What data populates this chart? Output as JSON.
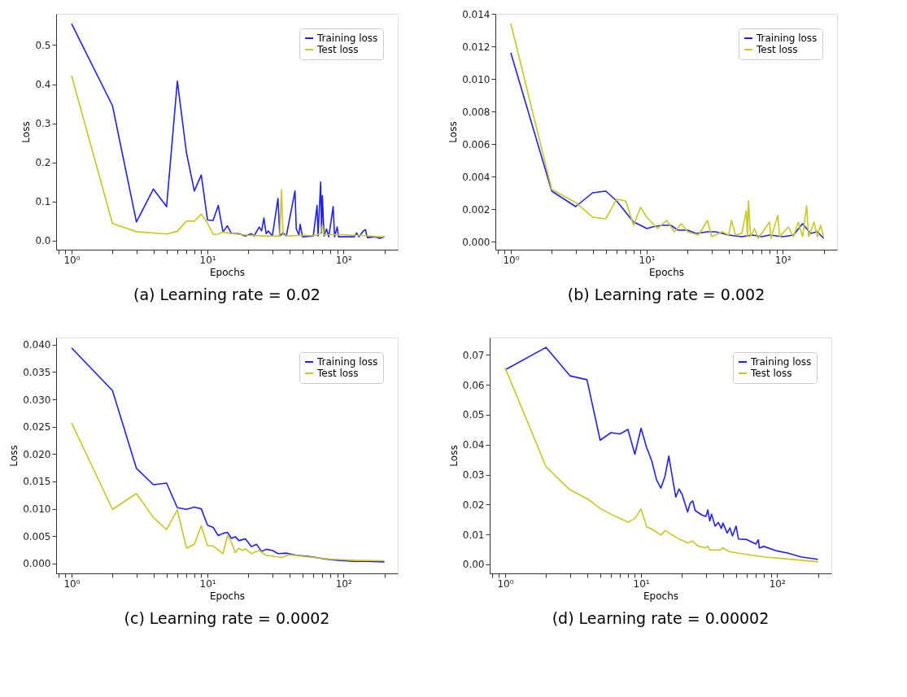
{
  "chart_data": [
    {
      "type": "line",
      "title": "(a) Learning rate = 0.02",
      "xlabel": "Epochs",
      "ylabel": "Loss",
      "log": "x",
      "grid": false,
      "legend": "top right",
      "line_style": "solid",
      "marker": "none",
      "xlim": [
        0.77,
        251
      ],
      "xticks": [
        {
          "value": 0.8,
          "label": null
        },
        {
          "value": 0.9,
          "label": null
        },
        {
          "value": 1,
          "label": "10⁰"
        },
        {
          "value": 2,
          "label": null
        },
        {
          "value": 3,
          "label": null
        },
        {
          "value": 4,
          "label": null
        },
        {
          "value": 5,
          "label": null
        },
        {
          "value": 6,
          "label": null
        },
        {
          "value": 7,
          "label": null
        },
        {
          "value": 8,
          "label": null
        },
        {
          "value": 9,
          "label": null
        },
        {
          "value": 10,
          "label": "10¹"
        },
        {
          "value": 20,
          "label": null
        },
        {
          "value": 30,
          "label": null
        },
        {
          "value": 40,
          "label": null
        },
        {
          "value": 50,
          "label": null
        },
        {
          "value": 60,
          "label": null
        },
        {
          "value": 70,
          "label": null
        },
        {
          "value": 80,
          "label": null
        },
        {
          "value": 90,
          "label": null
        },
        {
          "value": 100,
          "label": "10²"
        },
        {
          "value": 200,
          "label": null
        }
      ],
      "ylim": [
        -0.023,
        0.58
      ],
      "yticks": [
        {
          "value": 0,
          "label": "0.0"
        },
        0.1,
        0.2,
        0.3,
        0.4,
        0.5
      ],
      "series": [
        {
          "name": "Training loss",
          "color": "#1f1fff",
          "x": [
            1,
            2,
            3,
            4,
            5,
            6,
            7,
            8,
            9,
            10,
            11,
            12,
            13,
            14,
            15,
            17,
            19,
            21,
            22,
            24,
            25,
            26,
            27,
            28,
            30,
            33,
            34,
            36,
            38,
            44,
            45,
            47,
            48,
            50,
            60,
            64,
            65,
            68,
            69,
            70,
            72,
            75,
            78,
            84,
            86,
            90,
            92,
            120,
            125,
            130,
            140,
            145,
            150,
            170,
            185,
            200
          ],
          "values": [
            0.555,
            0.345,
            0.048,
            0.132,
            0.087,
            0.408,
            0.225,
            0.127,
            0.168,
            0.053,
            0.052,
            0.09,
            0.022,
            0.038,
            0.018,
            0.018,
            0.012,
            0.018,
            0.012,
            0.035,
            0.025,
            0.058,
            0.018,
            0.025,
            0.012,
            0.108,
            0.012,
            0.02,
            0.012,
            0.127,
            0.03,
            0.015,
            0.042,
            0.01,
            0.012,
            0.09,
            0.012,
            0.15,
            0.02,
            0.115,
            0.012,
            0.03,
            0.01,
            0.087,
            0.01,
            0.035,
            0.01,
            0.01,
            0.02,
            0.01,
            0.025,
            0.028,
            0.008,
            0.01,
            0.006,
            0.01
          ]
        },
        {
          "name": "Test loss",
          "color": "#c8c820",
          "x": [
            1,
            2,
            3,
            5,
            6,
            7,
            8,
            9,
            10,
            11,
            12,
            13,
            15,
            20,
            25,
            30,
            34,
            35,
            36,
            40,
            50,
            60,
            68,
            70,
            72,
            90,
            120,
            150,
            180,
            200
          ],
          "values": [
            0.422,
            0.044,
            0.023,
            0.017,
            0.024,
            0.05,
            0.05,
            0.068,
            0.045,
            0.016,
            0.017,
            0.022,
            0.018,
            0.014,
            0.012,
            0.012,
            0.012,
            0.13,
            0.015,
            0.012,
            0.014,
            0.013,
            0.018,
            0.04,
            0.015,
            0.016,
            0.014,
            0.013,
            0.01,
            0.01
          ]
        }
      ]
    },
    {
      "type": "line",
      "title": "(b) Learning rate = 0.002",
      "xlabel": "Epochs",
      "ylabel": "Loss",
      "log": "x",
      "grid": false,
      "legend": "top right",
      "line_style": "solid",
      "marker": "none",
      "xlim": [
        0.77,
        251
      ],
      "xticks": [
        {
          "value": 0.8,
          "label": null
        },
        {
          "value": 0.9,
          "label": null
        },
        {
          "value": 1,
          "label": "10⁰"
        },
        {
          "value": 2,
          "label": null
        },
        {
          "value": 3,
          "label": null
        },
        {
          "value": 4,
          "label": null
        },
        {
          "value": 5,
          "label": null
        },
        {
          "value": 6,
          "label": null
        },
        {
          "value": 7,
          "label": null
        },
        {
          "value": 8,
          "label": null
        },
        {
          "value": 9,
          "label": null
        },
        {
          "value": 10,
          "label": "10¹"
        },
        {
          "value": 20,
          "label": null
        },
        {
          "value": 30,
          "label": null
        },
        {
          "value": 40,
          "label": null
        },
        {
          "value": 50,
          "label": null
        },
        {
          "value": 60,
          "label": null
        },
        {
          "value": 70,
          "label": null
        },
        {
          "value": 80,
          "label": null
        },
        {
          "value": 90,
          "label": null
        },
        {
          "value": 100,
          "label": "10²"
        },
        {
          "value": 200,
          "label": null
        }
      ],
      "ylim": [
        -0.0005,
        0.014
      ],
      "yticks": [
        {
          "value": 0,
          "label": "0.000"
        },
        0.002,
        0.004,
        0.006,
        0.008,
        {
          "value": 0.01,
          "label": "0.010"
        },
        0.012,
        0.014
      ],
      "series": [
        {
          "name": "Training loss",
          "color": "#1f1fff",
          "x": [
            1,
            2,
            3,
            4,
            5,
            6,
            7,
            8,
            9,
            10,
            11,
            13,
            15,
            17,
            20,
            23,
            28,
            32,
            36,
            40,
            50,
            60,
            70,
            80,
            100,
            120,
            140,
            160,
            180,
            200
          ],
          "values": [
            0.0116,
            0.0031,
            0.00215,
            0.003,
            0.0031,
            0.0025,
            0.0018,
            0.0012,
            0.001,
            0.0008,
            0.0009,
            0.001,
            0.001,
            0.0007,
            0.0007,
            0.0005,
            0.0006,
            0.0006,
            0.0005,
            0.0004,
            0.0003,
            0.0004,
            0.0003,
            0.0004,
            0.0003,
            0.0004,
            0.0011,
            0.0005,
            0.0006,
            0.0002
          ]
        },
        {
          "name": "Test loss",
          "color": "#c8c820",
          "x": [
            1,
            2,
            3,
            4,
            5,
            6,
            7,
            8,
            9,
            10,
            12,
            14,
            16,
            18,
            20,
            24,
            28,
            30,
            36,
            40,
            42,
            45,
            50,
            54,
            55,
            56,
            58,
            62,
            66,
            80,
            82,
            92,
            95,
            110,
            120,
            130,
            140,
            150,
            155,
            170,
            180,
            190,
            200
          ],
          "values": [
            0.0134,
            0.0032,
            0.0024,
            0.0015,
            0.0014,
            0.0026,
            0.0025,
            0.001,
            0.0021,
            0.0015,
            0.0008,
            0.0013,
            0.0006,
            0.0011,
            0.0006,
            0.0004,
            0.0013,
            0.0003,
            0.0006,
            0.0004,
            0.0013,
            0.0004,
            0.0005,
            0.0019,
            0.0003,
            0.0025,
            0.0003,
            0.0008,
            0.0002,
            0.0012,
            0.0002,
            0.0016,
            0.0003,
            0.0009,
            0.0003,
            0.0012,
            0.0003,
            0.0022,
            0.0003,
            0.0012,
            0.0003,
            0.001,
            0.0003
          ]
        }
      ]
    },
    {
      "type": "line",
      "title": "(c) Learning rate = 0.0002",
      "xlabel": "Epochs",
      "ylabel": "Loss",
      "log": "x",
      "grid": false,
      "legend": "top right",
      "line_style": "solid",
      "marker": "none",
      "xlim": [
        0.77,
        251
      ],
      "xticks": [
        {
          "value": 0.8,
          "label": null
        },
        {
          "value": 0.9,
          "label": null
        },
        {
          "value": 1,
          "label": "10⁰"
        },
        {
          "value": 2,
          "label": null
        },
        {
          "value": 3,
          "label": null
        },
        {
          "value": 4,
          "label": null
        },
        {
          "value": 5,
          "label": null
        },
        {
          "value": 6,
          "label": null
        },
        {
          "value": 7,
          "label": null
        },
        {
          "value": 8,
          "label": null
        },
        {
          "value": 9,
          "label": null
        },
        {
          "value": 10,
          "label": "10¹"
        },
        {
          "value": 20,
          "label": null
        },
        {
          "value": 30,
          "label": null
        },
        {
          "value": 40,
          "label": null
        },
        {
          "value": 50,
          "label": null
        },
        {
          "value": 60,
          "label": null
        },
        {
          "value": 70,
          "label": null
        },
        {
          "value": 80,
          "label": null
        },
        {
          "value": 90,
          "label": null
        },
        {
          "value": 100,
          "label": "10²"
        },
        {
          "value": 200,
          "label": null
        }
      ],
      "ylim": [
        -0.0018,
        0.0413
      ],
      "yticks": [
        {
          "value": 0,
          "label": "0.000"
        },
        0.005,
        {
          "value": 0.01,
          "label": "0.010"
        },
        0.015,
        {
          "value": 0.02,
          "label": "0.020"
        },
        0.025,
        {
          "value": 0.03,
          "label": "0.030"
        },
        0.035,
        {
          "value": 0.04,
          "label": "0.040"
        }
      ],
      "series": [
        {
          "name": "Training loss",
          "color": "#1f1fff",
          "x": [
            1,
            2,
            3,
            4,
            5,
            6,
            7,
            8,
            9,
            10,
            11,
            12,
            13,
            14,
            15,
            16,
            17,
            19,
            21,
            23,
            25,
            27,
            30,
            33,
            38,
            45,
            55,
            70,
            90,
            120,
            150,
            200
          ],
          "values": [
            0.0394,
            0.0316,
            0.0174,
            0.0144,
            0.0147,
            0.0102,
            0.0099,
            0.0103,
            0.01,
            0.007,
            0.0066,
            0.0051,
            0.0055,
            0.0057,
            0.0046,
            0.0049,
            0.0042,
            0.0045,
            0.0031,
            0.0035,
            0.0022,
            0.0026,
            0.0024,
            0.0018,
            0.0019,
            0.0015,
            0.0013,
            0.0009,
            0.0006,
            0.0004,
            0.0004,
            0.0003
          ]
        },
        {
          "name": "Test loss",
          "color": "#c8c820",
          "x": [
            1,
            2,
            3,
            4,
            5,
            6,
            7,
            8,
            9,
            10,
            11,
            13,
            14,
            15,
            16,
            17,
            18,
            19,
            21,
            24,
            27,
            35,
            40,
            55,
            80,
            120,
            200
          ],
          "values": [
            0.0257,
            0.0099,
            0.0128,
            0.0084,
            0.0062,
            0.0098,
            0.0028,
            0.0035,
            0.0069,
            0.0033,
            0.0032,
            0.0018,
            0.0051,
            0.0039,
            0.002,
            0.0028,
            0.0024,
            0.0027,
            0.0018,
            0.0024,
            0.0015,
            0.0011,
            0.0016,
            0.0012,
            0.0008,
            0.0006,
            0.0005
          ]
        }
      ]
    },
    {
      "type": "line",
      "title": "(d) Learning rate = 0.00002",
      "xlabel": "Epochs",
      "ylabel": "Loss",
      "log": "x",
      "grid": false,
      "legend": "top right",
      "line_style": "solid",
      "marker": "none",
      "xlim": [
        0.77,
        251
      ],
      "xticks": [
        {
          "value": 0.8,
          "label": null
        },
        {
          "value": 0.9,
          "label": null
        },
        {
          "value": 1,
          "label": "10⁰"
        },
        {
          "value": 2,
          "label": null
        },
        {
          "value": 3,
          "label": null
        },
        {
          "value": 4,
          "label": null
        },
        {
          "value": 5,
          "label": null
        },
        {
          "value": 6,
          "label": null
        },
        {
          "value": 7,
          "label": null
        },
        {
          "value": 8,
          "label": null
        },
        {
          "value": 9,
          "label": null
        },
        {
          "value": 10,
          "label": "10¹"
        },
        {
          "value": 20,
          "label": null
        },
        {
          "value": 30,
          "label": null
        },
        {
          "value": 40,
          "label": null
        },
        {
          "value": 50,
          "label": null
        },
        {
          "value": 60,
          "label": null
        },
        {
          "value": 70,
          "label": null
        },
        {
          "value": 80,
          "label": null
        },
        {
          "value": 90,
          "label": null
        },
        {
          "value": 100,
          "label": "10²"
        },
        {
          "value": 200,
          "label": null
        }
      ],
      "ylim": [
        -0.003,
        0.0758
      ],
      "yticks": [
        {
          "value": 0,
          "label": "0.00"
        },
        0.01,
        0.02,
        0.03,
        0.04,
        0.05,
        0.06,
        0.07
      ],
      "series": [
        {
          "name": "Training loss",
          "color": "#1f1fff",
          "x": [
            1,
            2,
            3,
            4,
            5,
            6,
            7,
            8,
            9,
            10,
            11,
            12,
            13,
            14,
            15,
            16,
            17,
            18,
            19,
            20,
            22,
            23,
            24,
            25,
            28,
            30,
            31,
            32,
            33,
            35,
            37,
            39,
            40,
            43,
            45,
            47,
            50,
            52,
            60,
            70,
            73,
            74,
            80,
            100,
            120,
            150,
            200
          ],
          "values": [
            0.065,
            0.0725,
            0.063,
            0.0617,
            0.0415,
            0.044,
            0.0436,
            0.0451,
            0.0368,
            0.0455,
            0.039,
            0.0345,
            0.0282,
            0.0255,
            0.0295,
            0.0362,
            0.029,
            0.0225,
            0.0252,
            0.0235,
            0.0175,
            0.0205,
            0.0212,
            0.018,
            0.0165,
            0.016,
            0.0182,
            0.0145,
            0.0168,
            0.0128,
            0.014,
            0.012,
            0.0138,
            0.0105,
            0.0122,
            0.0095,
            0.0128,
            0.0085,
            0.0083,
            0.0068,
            0.0082,
            0.0055,
            0.006,
            0.0045,
            0.0038,
            0.0025,
            0.0017
          ]
        },
        {
          "name": "Test loss",
          "color": "#c8c820",
          "x": [
            1,
            2,
            3,
            4,
            5,
            6,
            8,
            9,
            10,
            11,
            12,
            14,
            15,
            17,
            19,
            22,
            24,
            26,
            30,
            31,
            32,
            38,
            40,
            45,
            60,
            80,
            120,
            200
          ],
          "values": [
            0.0657,
            0.0326,
            0.0249,
            0.022,
            0.0187,
            0.0168,
            0.0141,
            0.0153,
            0.0185,
            0.0125,
            0.0118,
            0.0098,
            0.0113,
            0.0098,
            0.0085,
            0.0072,
            0.0078,
            0.0062,
            0.0055,
            0.0061,
            0.0048,
            0.0048,
            0.0055,
            0.0042,
            0.0033,
            0.0025,
            0.0018,
            0.0009
          ]
        }
      ]
    }
  ]
}
